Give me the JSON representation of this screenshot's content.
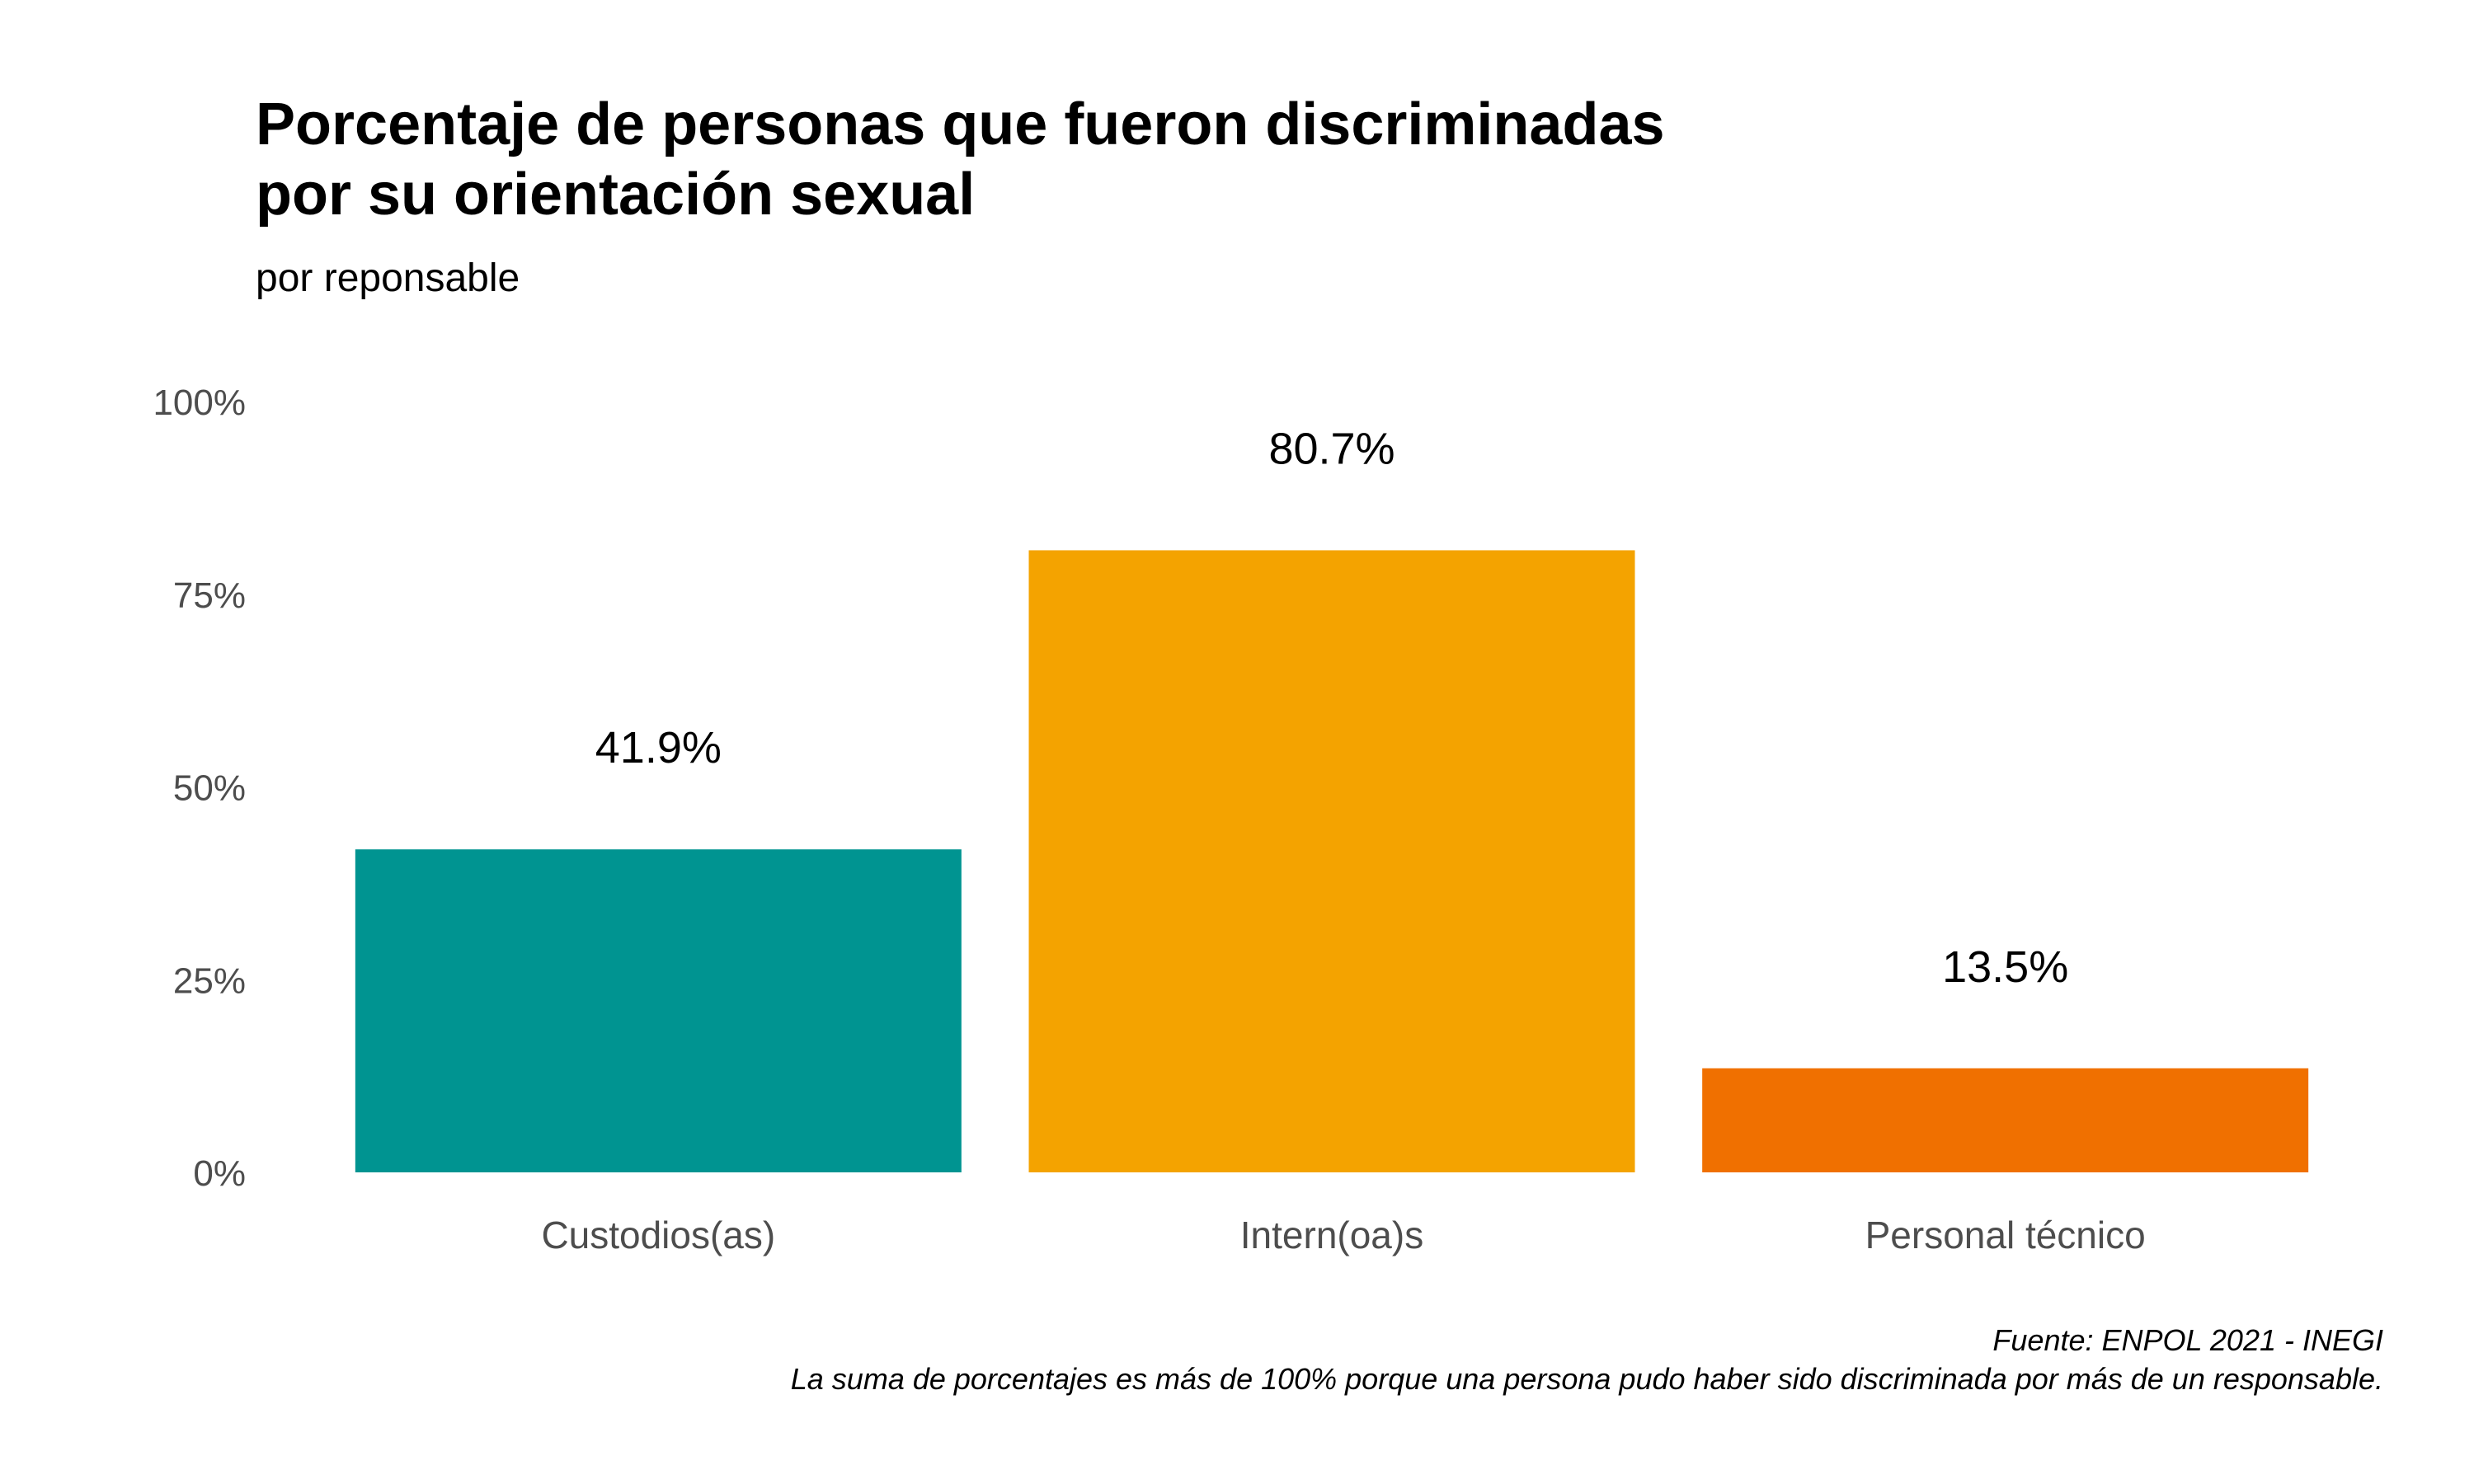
{
  "chart_data": {
    "type": "bar",
    "title_lines": [
      "Porcentaje de personas que fueron discriminadas",
      "por su orientación sexual"
    ],
    "subtitle": "por reponsable",
    "categories": [
      "Custodios(as)",
      "Intern(oa)s",
      "Personal técnico"
    ],
    "values": [
      41.9,
      80.7,
      13.5
    ],
    "value_labels": [
      "41.9%",
      "80.7%",
      "13.5%"
    ],
    "colors": [
      "#009491",
      "#F4A300",
      "#F07000"
    ],
    "ylim": [
      0,
      100
    ],
    "y_ticks": [
      0,
      25,
      50,
      75,
      100
    ],
    "y_tick_labels": [
      "0%",
      "25%",
      "50%",
      "75%",
      "100%"
    ],
    "xlabel": "",
    "ylabel": "",
    "grid": false,
    "legend": "none",
    "caption_lines": [
      "Fuente: ENPOL 2021 - INEGI",
      "La suma de porcentajes es más de 100% porque una persona pudo haber sido discriminada por más de un responsable."
    ]
  }
}
